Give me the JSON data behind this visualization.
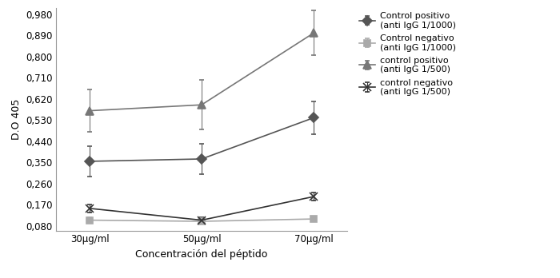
{
  "x_labels": [
    "30μg/ml",
    "50μg/ml",
    "70μg/ml"
  ],
  "x_values": [
    0,
    1,
    2
  ],
  "xlabel": "Concentración del péptido",
  "ylabel": "D.O 405",
  "yticks": [
    0.08,
    0.17,
    0.26,
    0.35,
    0.44,
    0.53,
    0.62,
    0.71,
    0.8,
    0.89,
    0.98
  ],
  "ylim": [
    0.06,
    1.005
  ],
  "xlim": [
    -0.3,
    2.3
  ],
  "series": [
    {
      "label": "Control positivo\n(anti IgG 1/1000)",
      "values": [
        0.355,
        0.365,
        0.54
      ],
      "errors": [
        0.065,
        0.065,
        0.07
      ],
      "color": "#555555",
      "marker": "D",
      "markersize": 6,
      "linestyle": "-",
      "linewidth": 1.2
    },
    {
      "label": "Control negativo\n(anti IgG 1/1000)",
      "values": [
        0.105,
        0.1,
        0.11
      ],
      "errors": [
        0.012,
        0.008,
        0.01
      ],
      "color": "#aaaaaa",
      "marker": "s",
      "markersize": 6,
      "linestyle": "-",
      "linewidth": 1.2
    },
    {
      "label": "control positivo\n(anti IgG 1/500)",
      "values": [
        0.57,
        0.595,
        0.9
      ],
      "errors": [
        0.09,
        0.105,
        0.095
      ],
      "color": "#777777",
      "marker": "^",
      "markersize": 7,
      "linestyle": "-",
      "linewidth": 1.2
    },
    {
      "label": "control negativo\n(anti IgG 1/500)",
      "values": [
        0.155,
        0.105,
        0.205
      ],
      "errors": [
        0.018,
        0.012,
        0.018
      ],
      "color": "#333333",
      "marker": "x",
      "markersize": 7,
      "linestyle": "-",
      "linewidth": 1.2
    }
  ],
  "background_color": "#ffffff",
  "axis_fontsize": 9,
  "tick_fontsize": 8.5,
  "legend_fontsize": 8
}
